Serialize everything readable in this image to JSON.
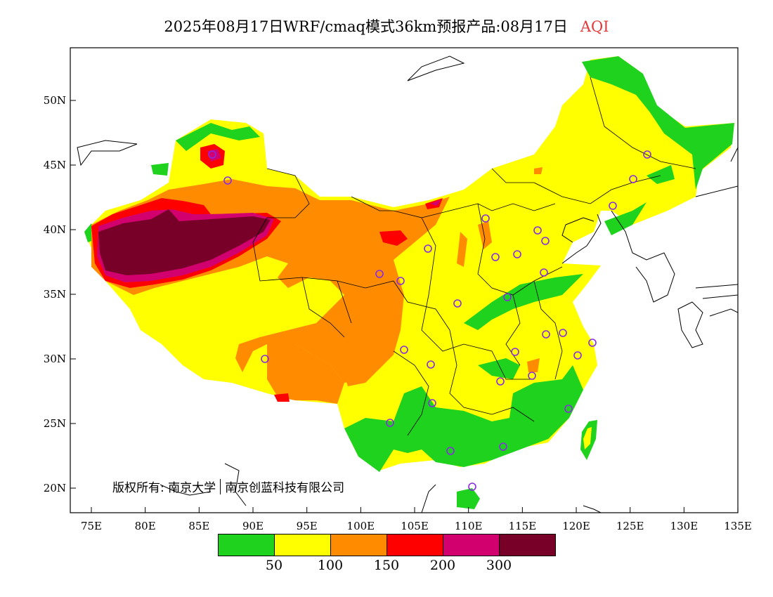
{
  "title": {
    "main": "2025年08月17日WRF/cmaq模式36km预报产品:08月17日",
    "variable": "AQI"
  },
  "credit": {
    "prefix": "版权所有:",
    "org1": "南京大学",
    "org2": "南京创蓝科技有限公司"
  },
  "axes": {
    "y_labels": [
      "50N",
      "45N",
      "40N",
      "35N",
      "30N",
      "25N",
      "20N"
    ],
    "x_labels": [
      "75E",
      "80E",
      "85E",
      "90E",
      "95E",
      "100E",
      "105E",
      "110E",
      "115E",
      "120E",
      "125E",
      "130E",
      "135E"
    ]
  },
  "legend": {
    "colors": [
      "#1ed21e",
      "#ffff00",
      "#ff8c00",
      "#ff0000",
      "#d2006e",
      "#780028"
    ],
    "labels": [
      "50",
      "100",
      "150",
      "200",
      "300"
    ]
  },
  "aqi_colors": {
    "good": "#1ed21e",
    "moderate": "#ffff00",
    "sensitive": "#ff8c00",
    "unhealthy": "#ff0000",
    "very_unhealthy": "#d2006e",
    "hazardous": "#780028",
    "station_marker": "#8a2be2"
  }
}
